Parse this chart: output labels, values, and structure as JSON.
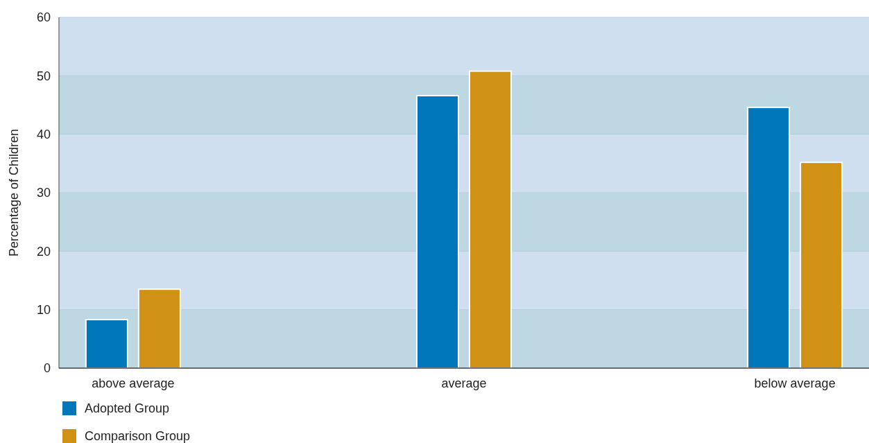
{
  "chart_data": {
    "type": "bar",
    "ylabel": "Percentage of Children",
    "categories": [
      "above average",
      "average",
      "below average"
    ],
    "series": [
      {
        "name": "Adopted Group",
        "color": "#0077bb",
        "values": [
          8.3,
          46.6,
          44.6
        ]
      },
      {
        "name": "Comparison Group",
        "color": "#cf9214",
        "values": [
          13.5,
          50.8,
          35.2
        ]
      }
    ],
    "ylim": [
      0,
      60
    ],
    "yticks": [
      0,
      10,
      20,
      30,
      40,
      50,
      60
    ],
    "grid": "y",
    "legend": "bottom left"
  }
}
